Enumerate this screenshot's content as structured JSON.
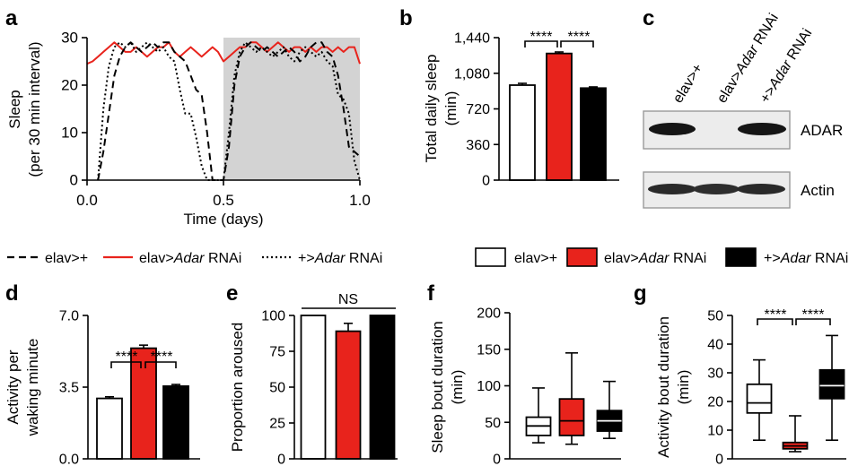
{
  "panels": {
    "a": {
      "letter": "a",
      "ylabel_line1": "Sleep",
      "ylabel_line2": "(per 30 min interval)",
      "xlabel": "Time (days)",
      "yticks": [
        "0",
        "10",
        "20",
        "30"
      ],
      "xticks": [
        "0.0",
        "0.5",
        "1.0"
      ]
    },
    "b": {
      "letter": "b",
      "ylabel_line1": "Total daily sleep",
      "ylabel_line2": "(min)",
      "yticks": [
        "0",
        "360",
        "720",
        "1,080",
        "1,440"
      ],
      "sig_left": "****",
      "sig_right": "****"
    },
    "c": {
      "letter": "c",
      "lanes": [
        {
          "prefix": "elav>+",
          "italic": "",
          "suffix": ""
        },
        {
          "prefix": "elav>",
          "italic": "Adar",
          "suffix": " RNAi"
        },
        {
          "prefix": "+>",
          "italic": "Adar",
          "suffix": " RNAi"
        }
      ],
      "band_labels": [
        "ADAR",
        "Actin"
      ]
    },
    "d": {
      "letter": "d",
      "ylabel_line1": "Activity per",
      "ylabel_line2": "waking minute",
      "yticks": [
        "0.0",
        "3.5",
        "7.0"
      ],
      "sig_left": "****",
      "sig_right": "****"
    },
    "e": {
      "letter": "e",
      "ylabel": "Proportion aroused",
      "yticks": [
        "0",
        "25",
        "50",
        "75",
        "100"
      ],
      "sig_label": "NS"
    },
    "f": {
      "letter": "f",
      "ylabel_line1": "Sleep bout duration",
      "ylabel_line2": "(min)",
      "yticks": [
        "0",
        "50",
        "100",
        "150",
        "200"
      ]
    },
    "g": {
      "letter": "g",
      "ylabel_line1": "Activity bout duration",
      "ylabel_line2": "(min)",
      "yticks": [
        "0",
        "10",
        "20",
        "30",
        "40",
        "50"
      ],
      "sig_left": "****",
      "sig_right": "****"
    }
  },
  "legend_line": [
    {
      "prefix": "elav>+",
      "italic": "",
      "suffix": "",
      "style": "dashed",
      "color": "#000000"
    },
    {
      "prefix": "elav>",
      "italic": "Adar",
      "suffix": " RNAi",
      "style": "solid",
      "color": "#e8231c"
    },
    {
      "prefix": "+>",
      "italic": "Adar",
      "suffix": " RNAi",
      "style": "dotted",
      "color": "#000000"
    }
  ],
  "legend_box": [
    {
      "prefix": "elav>+",
      "italic": "",
      "suffix": "",
      "color": "#ffffff"
    },
    {
      "prefix": "elav>",
      "italic": "Adar",
      "suffix": " RNAi",
      "color": "#e8231c"
    },
    {
      "prefix": "+>",
      "italic": "Adar",
      "suffix": " RNAi",
      "color": "#000000"
    }
  ],
  "colors": {
    "control": "#ffffff",
    "rnai": "#e8231c",
    "control2": "#000000",
    "night": "#d3d3d3"
  },
  "chart_data": [
    {
      "panel": "a",
      "type": "line",
      "xlim": [
        0,
        1
      ],
      "ylim": [
        0,
        30
      ],
      "night_shading": [
        0.5,
        1.0
      ],
      "series": [
        {
          "name": "elav>Adar RNAi",
          "style": "solid",
          "color": "#e8231c",
          "x": [
            0.0,
            0.02,
            0.04,
            0.06,
            0.08,
            0.1,
            0.12,
            0.14,
            0.16,
            0.18,
            0.2,
            0.22,
            0.24,
            0.26,
            0.28,
            0.3,
            0.32,
            0.34,
            0.36,
            0.38,
            0.4,
            0.42,
            0.44,
            0.46,
            0.48,
            0.5,
            0.52,
            0.54,
            0.56,
            0.58,
            0.6,
            0.62,
            0.64,
            0.66,
            0.68,
            0.7,
            0.72,
            0.74,
            0.76,
            0.78,
            0.8,
            0.82,
            0.84,
            0.86,
            0.88,
            0.9,
            0.92,
            0.94,
            0.96,
            0.98,
            1.0
          ],
          "y": [
            24.5,
            25,
            26,
            27,
            28,
            29,
            28,
            27,
            27,
            28,
            27,
            26,
            27,
            28,
            28,
            29,
            27,
            26,
            27,
            28,
            27,
            26,
            27,
            28,
            27,
            25,
            26,
            27,
            28,
            28,
            29,
            29,
            28,
            27,
            28,
            29,
            28,
            27,
            28,
            28,
            27,
            28,
            27,
            28,
            28,
            27,
            28,
            27,
            28,
            28,
            24.5
          ]
        },
        {
          "name": "elav>+",
          "style": "dashed",
          "color": "#000000",
          "x": [
            0.04,
            0.06,
            0.08,
            0.1,
            0.12,
            0.14,
            0.16,
            0.18,
            0.2,
            0.22,
            0.24,
            0.26,
            0.28,
            0.3,
            0.32,
            0.34,
            0.36,
            0.38,
            0.4,
            0.42,
            0.44,
            0.45,
            0.46,
            0.48,
            0.5,
            0.52,
            0.54,
            0.56,
            0.58,
            0.6,
            0.62,
            0.64,
            0.66,
            0.68,
            0.7,
            0.72,
            0.74,
            0.76,
            0.78,
            0.8,
            0.82,
            0.84,
            0.86,
            0.88,
            0.9,
            0.92,
            0.94,
            0.96,
            0.98,
            1.0
          ],
          "y": [
            0,
            6,
            14,
            22,
            26,
            28,
            29,
            28,
            27,
            28,
            29,
            28,
            29,
            29,
            27,
            26,
            25,
            22,
            19,
            18,
            10,
            5,
            0,
            0,
            0,
            7,
            20,
            26,
            28,
            29,
            28,
            27,
            28,
            27,
            26,
            27,
            28,
            27,
            25,
            26,
            28,
            29,
            29,
            27,
            26,
            22,
            15,
            7,
            6,
            5
          ]
        },
        {
          "name": "+>Adar RNAi",
          "style": "dotted",
          "color": "#000000",
          "x": [
            0.04,
            0.06,
            0.08,
            0.1,
            0.12,
            0.14,
            0.16,
            0.18,
            0.2,
            0.22,
            0.24,
            0.26,
            0.28,
            0.3,
            0.32,
            0.34,
            0.36,
            0.38,
            0.4,
            0.42,
            0.44,
            0.46,
            0.48,
            0.5,
            0.52,
            0.54,
            0.56,
            0.58,
            0.6,
            0.62,
            0.64,
            0.66,
            0.68,
            0.7,
            0.72,
            0.74,
            0.76,
            0.78,
            0.8,
            0.82,
            0.84,
            0.86,
            0.88,
            0.9,
            0.92,
            0.94,
            0.96,
            0.98,
            1.0
          ],
          "y": [
            0,
            15,
            24,
            28,
            29,
            28,
            29,
            27,
            28,
            29,
            28,
            27,
            28,
            26,
            25,
            19,
            14,
            14,
            9,
            3,
            0,
            0,
            0,
            0,
            10,
            22,
            27,
            29,
            28,
            27,
            28,
            27,
            26,
            27,
            28,
            26,
            25,
            27,
            28,
            27,
            26,
            27,
            25,
            24,
            18,
            17,
            14,
            4,
            0
          ]
        }
      ]
    },
    {
      "panel": "b",
      "type": "bar",
      "categories": [
        "elav>+",
        "elav>Adar RNAi",
        "+>Adar RNAi"
      ],
      "values": [
        960,
        1280,
        930
      ],
      "errors": [
        18,
        15,
        12
      ],
      "ylim": [
        0,
        1440
      ]
    },
    {
      "panel": "d",
      "type": "bar",
      "categories": [
        "elav>+",
        "elav>Adar RNAi",
        "+>Adar RNAi"
      ],
      "values": [
        2.95,
        5.4,
        3.55
      ],
      "errors": [
        0.08,
        0.15,
        0.08
      ],
      "ylim": [
        0,
        7
      ]
    },
    {
      "panel": "e",
      "type": "bar",
      "categories": [
        "elav>+",
        "elav>Adar RNAi",
        "+>Adar RNAi"
      ],
      "values": [
        100,
        89,
        100
      ],
      "errors": [
        0,
        5.5,
        0
      ],
      "ylim": [
        0,
        100
      ]
    },
    {
      "panel": "f",
      "type": "box",
      "categories": [
        "elav>+",
        "elav>Adar RNAi",
        "+>Adar RNAi"
      ],
      "whisker_low": [
        22,
        20,
        28
      ],
      "q1": [
        32,
        32,
        38
      ],
      "median": [
        45,
        52,
        52
      ],
      "q3": [
        57,
        82,
        66
      ],
      "whisker_high": [
        97,
        145,
        106
      ],
      "ylim": [
        0,
        200
      ]
    },
    {
      "panel": "g",
      "type": "box",
      "categories": [
        "elav>+",
        "elav>Adar RNAi",
        "+>Adar RNAi"
      ],
      "whisker_low": [
        6.5,
        2.5,
        6.5
      ],
      "q1": [
        16,
        3.5,
        21
      ],
      "median": [
        19.5,
        4.5,
        25.5
      ],
      "q3": [
        26,
        5.7,
        31
      ],
      "whisker_high": [
        34.5,
        15,
        43
      ],
      "ylim": [
        0,
        50
      ]
    }
  ]
}
